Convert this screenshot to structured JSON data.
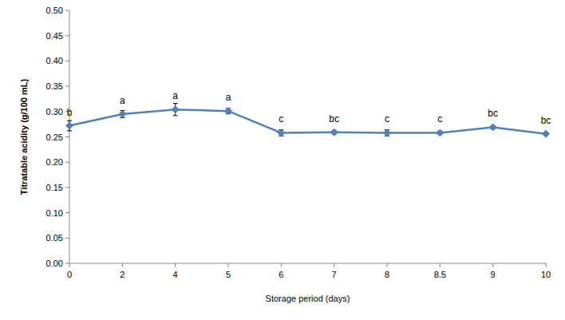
{
  "chart_data": {
    "type": "line",
    "x_label": "Storage period (days)",
    "y_label": "Titratable acidity (g/100 mL)",
    "categories": [
      "0",
      "2",
      "4",
      "5",
      "6",
      "7",
      "8",
      "8.5",
      "9",
      "10"
    ],
    "values": [
      0.272,
      0.295,
      0.304,
      0.301,
      0.258,
      0.259,
      0.258,
      0.258,
      0.269,
      0.256
    ],
    "errors": [
      0.01,
      0.007,
      0.012,
      0.005,
      0.006,
      0.003,
      0.006,
      0.003,
      0.003,
      0.003
    ],
    "annotations": [
      "b",
      "a",
      "a",
      "a",
      "c",
      "bc",
      "c",
      "c",
      "bc",
      "bc"
    ],
    "color": "#4f81bd",
    "marker": "diamond",
    "grid": false,
    "ylim": [
      0,
      0.5
    ],
    "yticks": [
      {
        "value": 0,
        "label": "0.00"
      },
      {
        "value": 0.05,
        "label": "0.05"
      },
      {
        "value": 0.1,
        "label": "0.10"
      },
      {
        "value": 0.15,
        "label": "0.15"
      },
      {
        "value": 0.2,
        "label": "0.20"
      },
      {
        "value": 0.25,
        "label": "0.25"
      },
      {
        "value": 0.3,
        "label": "0.30"
      },
      {
        "value": 0.35,
        "label": "0.35"
      },
      {
        "value": 0.4,
        "label": "0.40"
      },
      {
        "value": 0.45,
        "label": "0.45"
      },
      {
        "value": 0.5,
        "label": "0.50"
      }
    ]
  }
}
